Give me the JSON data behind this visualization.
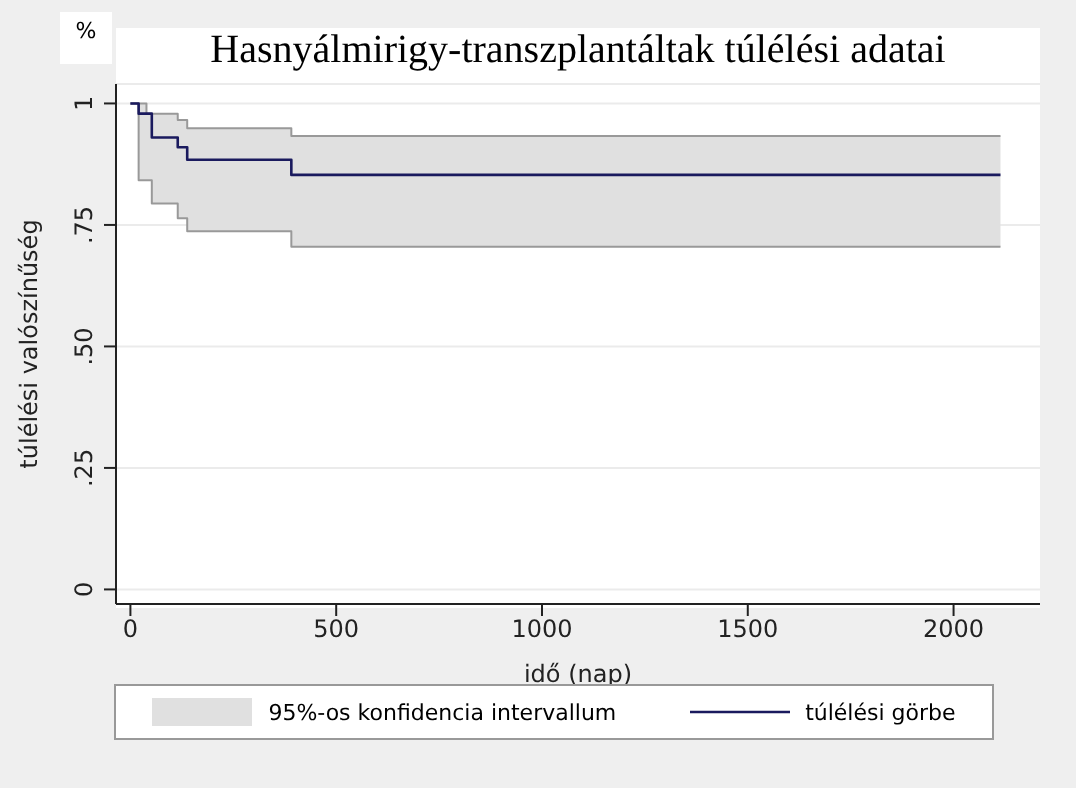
{
  "chart_data": {
    "type": "step",
    "title": "Hasnyálmirigy-transzplantáltak túlélési adatai",
    "xlabel": "idő (nap)",
    "ylabel": "túlélési valószínűség",
    "annotations": [
      "%",
      "95%-os konfidencia intervallum"
    ],
    "x": [
      0,
      20,
      39,
      52,
      115,
      138,
      391,
      2114
    ],
    "series": [
      {
        "name": "túlélési görbe",
        "color": "#1a1a5e",
        "values": [
          1,
          0.979,
          0.979,
          0.93,
          0.91,
          0.884,
          0.853,
          0.853
        ],
        "lower": [
          1,
          0.842,
          0.842,
          0.794,
          0.764,
          0.737,
          0.705,
          0.705
        ],
        "upper": [
          1,
          1,
          0.979,
          0.979,
          0.966,
          0.949,
          0.933,
          0.933
        ]
      },
      {
        "color": "#999999",
        "values": [
          1,
          1,
          0.979,
          0.979,
          0.966,
          0.949,
          0.933,
          0.933
        ]
      },
      {
        "color": "#999999",
        "values": [
          1,
          0.842,
          0.842,
          0.794,
          0.764,
          0.737,
          0.705,
          0.705
        ]
      }
    ],
    "xlim": [
      -35,
      2210
    ],
    "xticks": [
      0,
      500,
      1000,
      1500,
      2000
    ],
    "ylim": [
      -0.03,
      1.04
    ],
    "yticks": [
      0,
      {
        "value": 0.25,
        "label": ".25"
      },
      {
        "value": 0.5,
        "label": ".50"
      },
      {
        "value": 0.75,
        "label": ".75"
      },
      1
    ],
    "grid": "y",
    "legend": "bottom"
  }
}
